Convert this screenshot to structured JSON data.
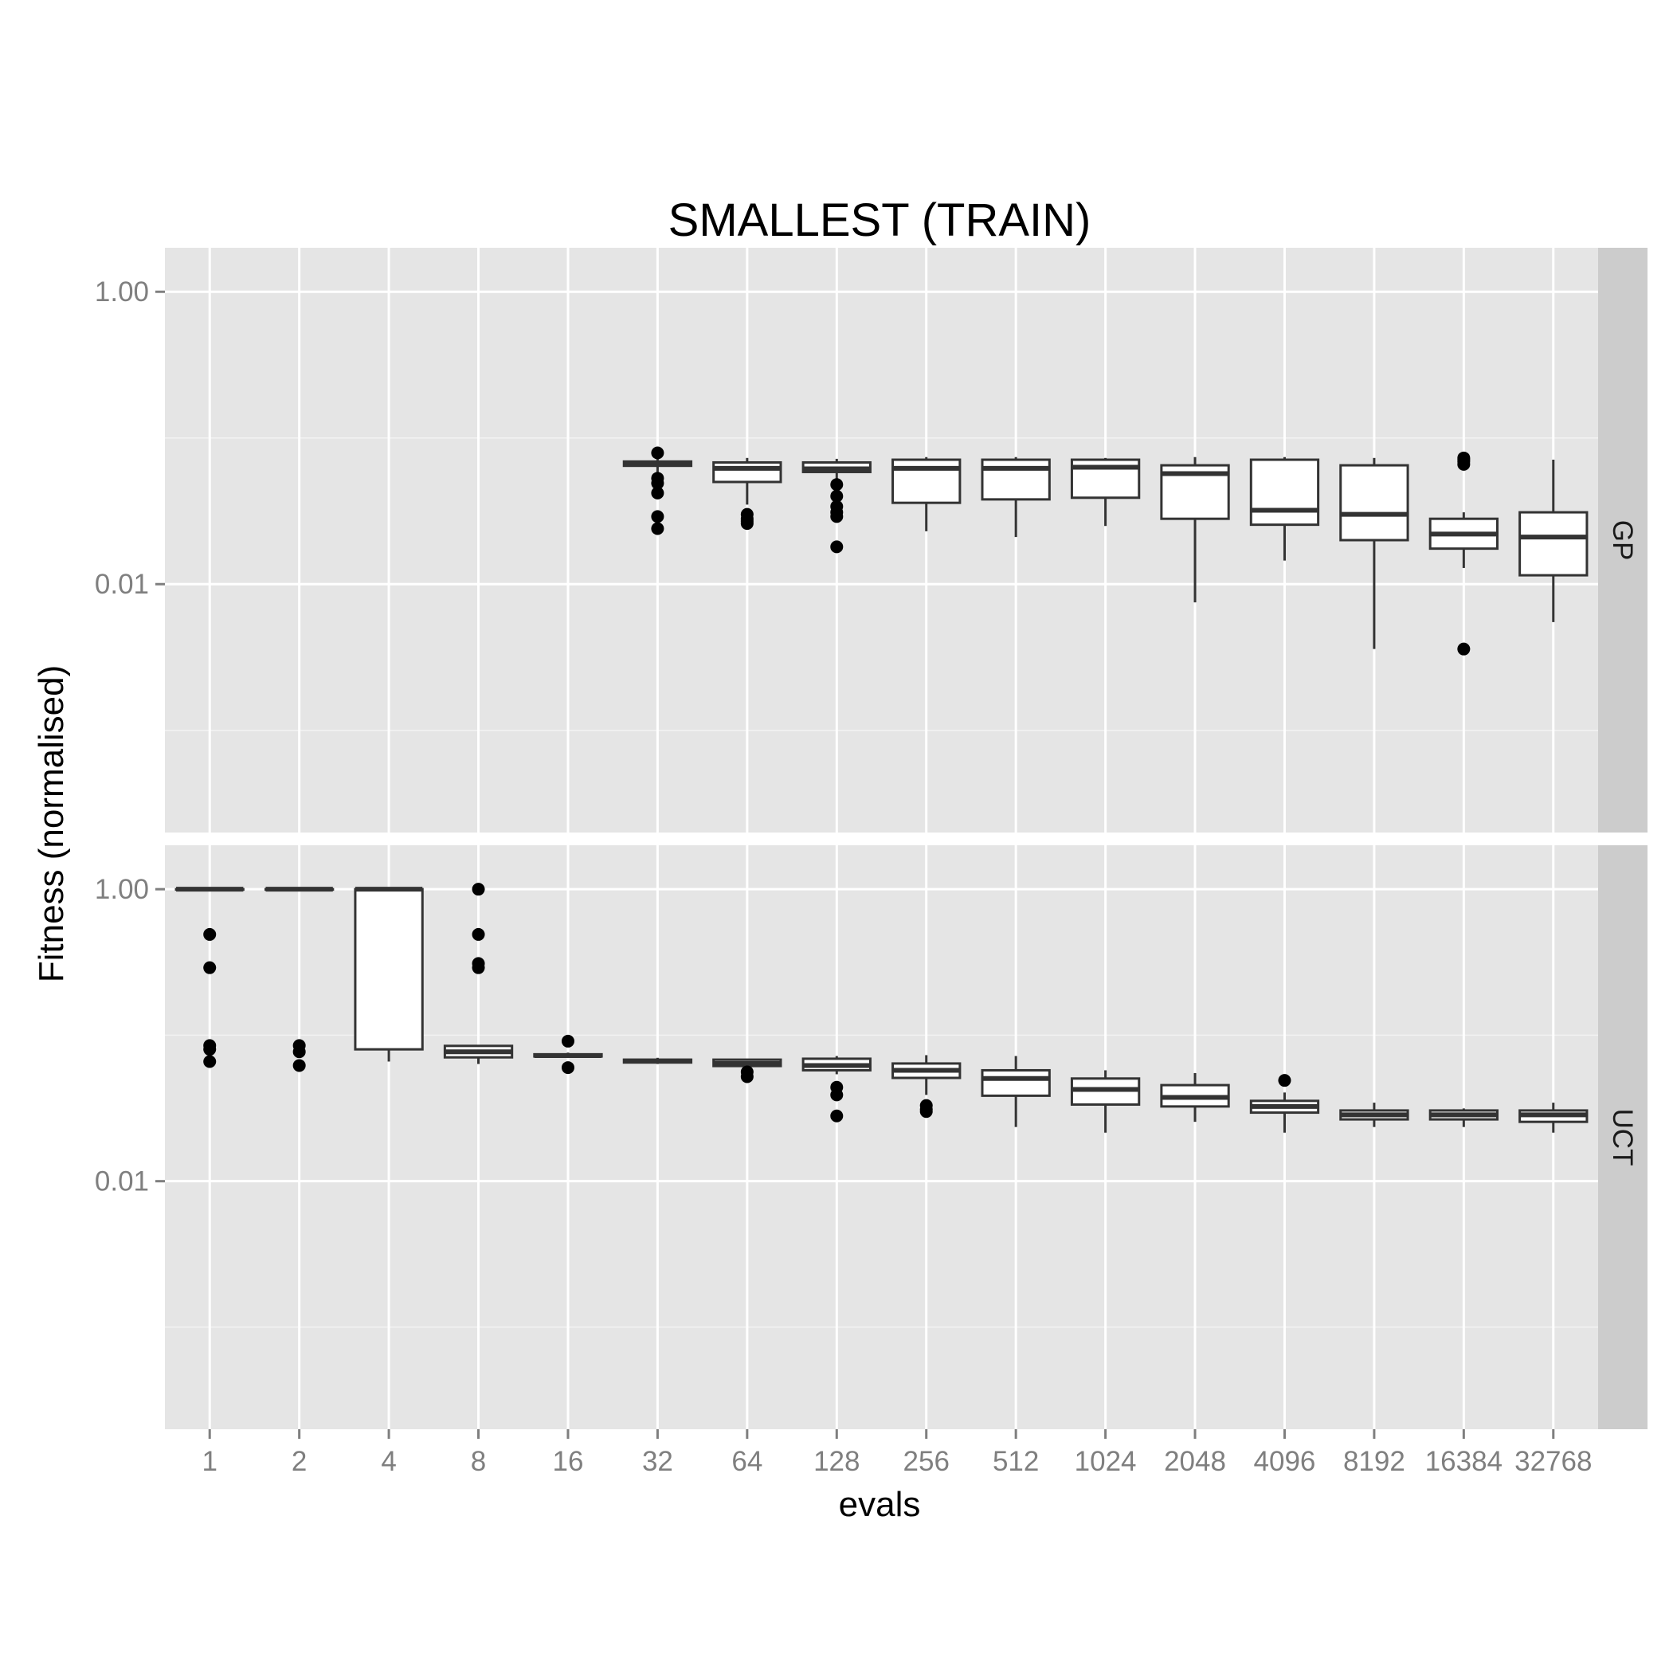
{
  "chart_data": {
    "type": "boxplot",
    "title": "SMALLEST (TRAIN)",
    "xlabel": "evals",
    "ylabel": "Fitness (normalised)",
    "y_scale": "log10",
    "ylim": [
      0.0002,
      2.0
    ],
    "y_ticks": [
      1.0,
      0.01
    ],
    "y_tick_labels": [
      "1.00",
      "0.01"
    ],
    "categories": [
      "1",
      "2",
      "4",
      "8",
      "16",
      "32",
      "64",
      "128",
      "256",
      "512",
      "1024",
      "2048",
      "4096",
      "8192",
      "16384",
      "32768"
    ],
    "grid": true,
    "facets": [
      {
        "label": "GP",
        "boxes": [
          null,
          null,
          null,
          null,
          null,
          {
            "lower": 0.058,
            "q1": 0.0645,
            "median": 0.066,
            "q3": 0.069,
            "upper": 0.075,
            "outliers": [
              0.079,
              0.053,
              0.049,
              0.042,
              0.029,
              0.024
            ]
          },
          {
            "lower": 0.035,
            "q1": 0.05,
            "median": 0.062,
            "q3": 0.068,
            "upper": 0.073,
            "outliers": [
              0.03,
              0.028,
              0.027,
              0.026
            ]
          },
          {
            "lower": 0.047,
            "q1": 0.0585,
            "median": 0.0615,
            "q3": 0.068,
            "upper": 0.072,
            "outliers": [
              0.048,
              0.04,
              0.034,
              0.031,
              0.029,
              0.018
            ]
          },
          {
            "lower": 0.023,
            "q1": 0.036,
            "median": 0.062,
            "q3": 0.071,
            "upper": 0.074
          },
          {
            "lower": 0.021,
            "q1": 0.038,
            "median": 0.062,
            "q3": 0.071,
            "upper": 0.074
          },
          {
            "lower": 0.025,
            "q1": 0.039,
            "median": 0.063,
            "q3": 0.071,
            "upper": 0.073
          },
          {
            "lower": 0.0075,
            "q1": 0.028,
            "median": 0.057,
            "q3": 0.065,
            "upper": 0.074
          },
          {
            "lower": 0.0145,
            "q1": 0.0255,
            "median": 0.032,
            "q3": 0.071,
            "upper": 0.074
          },
          {
            "lower": 0.0036,
            "q1": 0.02,
            "median": 0.03,
            "q3": 0.065,
            "upper": 0.073
          },
          {
            "lower": 0.0129,
            "q1": 0.0175,
            "median": 0.022,
            "q3": 0.028,
            "upper": 0.031,
            "outliers": [
              0.0036,
              0.066,
              0.069,
              0.071,
              0.073
            ]
          },
          {
            "lower": 0.0055,
            "q1": 0.0115,
            "median": 0.021,
            "q3": 0.031,
            "upper": 0.071
          }
        ]
      },
      {
        "label": "UCT",
        "boxes": [
          {
            "lower": 1.0,
            "q1": 1.0,
            "median": 1.0,
            "q3": 1.0,
            "upper": 1.0,
            "outliers": [
              0.49,
              0.29,
              0.085,
              0.08,
              0.066
            ]
          },
          {
            "lower": 1.0,
            "q1": 1.0,
            "median": 1.0,
            "q3": 1.0,
            "upper": 1.0,
            "outliers": [
              0.085,
              0.077,
              0.062
            ]
          },
          {
            "lower": 0.066,
            "q1": 0.08,
            "median": 1.0,
            "q3": 1.0,
            "upper": 1.0
          },
          {
            "lower": 0.0635,
            "q1": 0.0705,
            "median": 0.077,
            "q3": 0.0845,
            "upper": 0.085,
            "outliers": [
              1.0,
              0.49,
              0.31,
              0.29
            ]
          },
          {
            "lower": 0.0705,
            "q1": 0.0715,
            "median": 0.0725,
            "q3": 0.074,
            "upper": 0.076,
            "outliers": [
              0.091,
              0.06
            ]
          },
          {
            "lower": 0.0635,
            "q1": 0.065,
            "median": 0.0665,
            "q3": 0.068,
            "upper": 0.07
          },
          {
            "lower": 0.061,
            "q1": 0.0615,
            "median": 0.064,
            "q3": 0.068,
            "upper": 0.069,
            "outliers": [
              0.056,
              0.052
            ]
          },
          {
            "lower": 0.054,
            "q1": 0.0575,
            "median": 0.062,
            "q3": 0.069,
            "upper": 0.072,
            "outliers": [
              0.044,
              0.039,
              0.028
            ]
          },
          {
            "lower": 0.039,
            "q1": 0.051,
            "median": 0.0575,
            "q3": 0.064,
            "upper": 0.073,
            "outliers": [
              0.033,
              0.031,
              0.03
            ]
          },
          {
            "lower": 0.0235,
            "q1": 0.0385,
            "median": 0.0505,
            "q3": 0.0575,
            "upper": 0.072
          },
          {
            "lower": 0.0215,
            "q1": 0.0335,
            "median": 0.0425,
            "q3": 0.0505,
            "upper": 0.0575
          },
          {
            "lower": 0.0255,
            "q1": 0.0325,
            "median": 0.0375,
            "q3": 0.0455,
            "upper": 0.055
          },
          {
            "lower": 0.0215,
            "q1": 0.0295,
            "median": 0.0325,
            "q3": 0.0355,
            "upper": 0.0405,
            "outliers": [
              0.049
            ]
          },
          {
            "lower": 0.0235,
            "q1": 0.0265,
            "median": 0.0285,
            "q3": 0.0305,
            "upper": 0.0345
          },
          {
            "lower": 0.0235,
            "q1": 0.0265,
            "median": 0.0285,
            "q3": 0.0305,
            "upper": 0.0315
          },
          {
            "lower": 0.0215,
            "q1": 0.0255,
            "median": 0.0285,
            "q3": 0.0305,
            "upper": 0.0345
          }
        ]
      }
    ]
  }
}
